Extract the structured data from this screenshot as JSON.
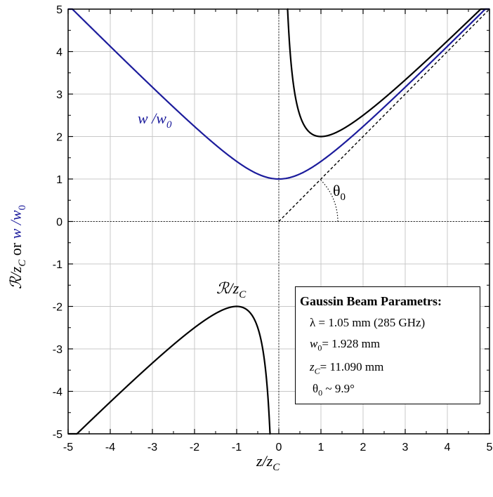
{
  "chart_data": {
    "type": "line",
    "xlabel": "z/z_C",
    "ylabel": "R/z_C or w/w_0",
    "xlim": [
      -5,
      5
    ],
    "ylim": [
      -5,
      5
    ],
    "x_ticks": [
      "-5",
      "-4",
      "-3",
      "-2",
      "-1",
      "0",
      "1",
      "2",
      "3",
      "4",
      "5"
    ],
    "y_ticks": [
      "5",
      "4",
      "3",
      "2",
      "1",
      "0",
      "-1",
      "-2",
      "-3",
      "-4",
      "-5"
    ],
    "grid": true,
    "series": [
      {
        "name": "w /w0",
        "color": "#1c1c9c",
        "formula": "w/w0 = sqrt(1 + (z/zC)^2)",
        "x": [
          -5,
          -4,
          -3,
          -2,
          -1,
          -0.5,
          0,
          0.5,
          1,
          2,
          3,
          4,
          5
        ],
        "y": [
          5.1,
          4.12,
          3.16,
          2.24,
          1.41,
          1.12,
          1.0,
          1.12,
          1.41,
          2.24,
          3.16,
          4.12,
          5.1
        ]
      },
      {
        "name": "R/zC",
        "color": "#000000",
        "formula": "R/zC = z/zC + zC/z",
        "x": [
          -4.8,
          -4,
          -3,
          -2,
          -1,
          -0.5,
          -0.25,
          -0.2,
          0.2,
          0.25,
          0.5,
          1,
          2,
          3,
          4,
          5
        ],
        "y": [
          -5.01,
          -4.25,
          -3.33,
          -2.5,
          -2.0,
          -2.5,
          -4.25,
          -5.2,
          5.2,
          4.25,
          2.5,
          2.0,
          2.5,
          3.33,
          4.25,
          5.2
        ]
      },
      {
        "name": "asymptote",
        "style": "dashed",
        "x": [
          0,
          5
        ],
        "y": [
          0,
          5
        ]
      }
    ],
    "labels": {
      "w_curve": "w /w0",
      "r_curve": "R/zC",
      "theta": "θ0"
    },
    "legend": {
      "title": "Gaussin Beam Parametrs:",
      "lambda": "λ = 1.05 mm (285 GHz)",
      "w0": "= 1.928 mm",
      "zc": "= 11.090 mm",
      "theta": "~ 9.9°"
    }
  }
}
